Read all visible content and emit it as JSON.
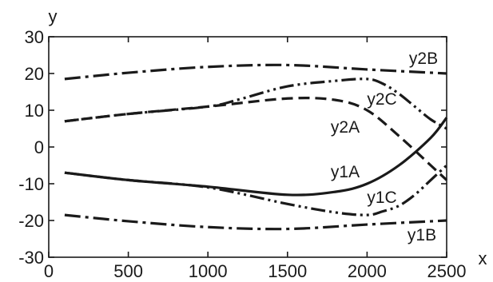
{
  "chart_data": {
    "type": "line",
    "title": "",
    "xlabel": "x",
    "ylabel": "y",
    "xlim": [
      0,
      2500
    ],
    "ylim": [
      -30,
      30
    ],
    "x_ticks": [
      0,
      500,
      1000,
      1500,
      2000,
      2500
    ],
    "y_ticks": [
      -30,
      -20,
      -10,
      0,
      10,
      20,
      30
    ],
    "x_tick_labels": [
      "0",
      "500",
      "1000",
      "1500",
      "2000",
      "2500"
    ],
    "y_tick_labels": [
      "-30",
      "-20",
      "-10",
      "0",
      "10",
      "20",
      "30"
    ],
    "grid": false,
    "legend": "none (series labelled inline)",
    "series": [
      {
        "name": "y2B",
        "line_style": "dash-dot",
        "color": "#1a1a1a",
        "x": [
          100,
          500,
          1000,
          1500,
          2000,
          2500
        ],
        "y": [
          18.5,
          20.2,
          21.8,
          22.3,
          21.1,
          20
        ]
      },
      {
        "name": "y2C",
        "line_style": "dash-dot-dot",
        "color": "#1a1a1a",
        "x": [
          100,
          500,
          1000,
          1200,
          1500,
          1800,
          2000,
          2100,
          2200,
          2300,
          2400,
          2500
        ],
        "y": [
          7,
          9,
          11,
          13,
          16.5,
          18,
          18.5,
          17.2,
          14.5,
          11,
          7.5,
          5
        ]
      },
      {
        "name": "y2A",
        "line_style": "dash",
        "color": "#1a1a1a",
        "x": [
          100,
          500,
          1000,
          1500,
          1800,
          2000,
          2200,
          2400,
          2500
        ],
        "y": [
          7,
          9,
          11,
          13.2,
          12.8,
          10,
          3,
          -5,
          -9
        ]
      },
      {
        "name": "y1A",
        "line_style": "solid",
        "color": "#1a1a1a",
        "x": [
          100,
          500,
          1000,
          1500,
          1800,
          2000,
          2200,
          2400,
          2500
        ],
        "y": [
          -7,
          -9,
          -10.8,
          -13,
          -12.2,
          -10,
          -5,
          2.5,
          8
        ]
      },
      {
        "name": "y1C",
        "line_style": "dash-dot-dot",
        "color": "#1a1a1a",
        "x": [
          100,
          500,
          1000,
          1500,
          1800,
          2000,
          2100,
          2200,
          2300,
          2400,
          2500
        ],
        "y": [
          -7,
          -9,
          -11,
          -15.5,
          -17.8,
          -18.5,
          -17.5,
          -16,
          -13,
          -9,
          -5
        ]
      },
      {
        "name": "y1B",
        "line_style": "dash-dot",
        "color": "#1a1a1a",
        "x": [
          100,
          500,
          1000,
          1500,
          2000,
          2500
        ],
        "y": [
          -18.5,
          -20.2,
          -21.8,
          -22.3,
          -21.1,
          -20
        ]
      }
    ]
  }
}
